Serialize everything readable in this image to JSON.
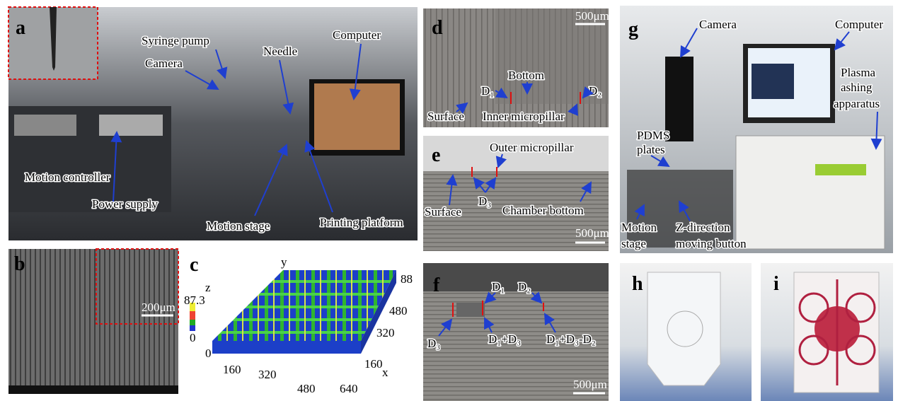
{
  "panels": {
    "a": {
      "label": "a",
      "annotations": [
        "Syringe pump",
        "Camera",
        "Needle",
        "Computer",
        "Motion controller",
        "Power supply",
        "Motion stage",
        "Printing platform"
      ]
    },
    "b": {
      "label": "b",
      "scale_bar": "200μm"
    },
    "c": {
      "label": "c",
      "z_axis": "z",
      "z_max": "87.3",
      "z_min": "0",
      "y_axis": "y",
      "x_axis": "x",
      "y_ticks": [
        "88",
        "480",
        "320",
        "160"
      ],
      "x_ticks": [
        "0",
        "160",
        "320",
        "480",
        "640"
      ]
    },
    "d": {
      "label": "d",
      "scale_bar": "500μm",
      "annotations": [
        "Bottom",
        "D₁",
        "D₂",
        "Surface",
        "Inner micropillar"
      ]
    },
    "e": {
      "label": "e",
      "scale_bar": "500μm",
      "annotations": [
        "Outer micropillar",
        "Surface",
        "D₃",
        "Chamber bottom"
      ]
    },
    "f": {
      "label": "f",
      "scale_bar": "500μm",
      "annotations": [
        "D₁",
        "D₂",
        "D₃",
        "D₁+D₃",
        "D₁+D₃-D₂"
      ]
    },
    "g": {
      "label": "g",
      "annotations": [
        "Camera",
        "Computer"
      ],
      "plasma": [
        "Plasma",
        "ashing",
        "apparatus"
      ],
      "pdms": [
        "PDMS",
        "plates"
      ],
      "motion": [
        "Motion",
        "stage"
      ],
      "zbutton": [
        "Z-direction",
        "moving button"
      ]
    },
    "h": {
      "label": "h"
    },
    "i": {
      "label": "i"
    }
  }
}
